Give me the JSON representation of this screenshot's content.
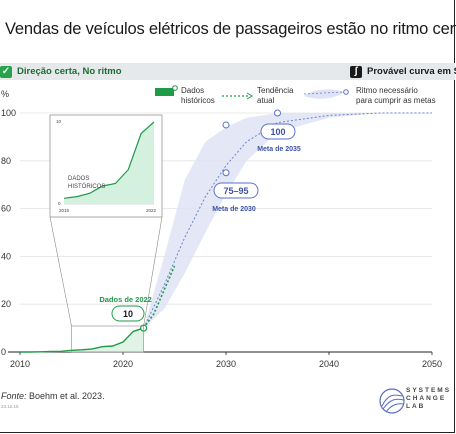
{
  "title": "Vendas de veículos elétricos de passageiros estão no ritmo certo",
  "status": {
    "left_label": "Direção certa, No ritmo",
    "right_label": "Provável curva em S"
  },
  "legend": {
    "historical": [
      "Dados",
      "históricos"
    ],
    "trend": [
      "Tendência",
      "atual"
    ],
    "required": [
      "Ritmo necessário",
      "para cumprir as metas"
    ]
  },
  "annotations": {
    "data2022_title": "Dados de 2022",
    "data2022_value": "10",
    "target2030_value": "75–95",
    "target2030_label": "Meta de 2030",
    "target2035_value": "100",
    "target2035_label": "Meta de 2035"
  },
  "inset": {
    "label": [
      "DADOS",
      "HISTÓRICOS"
    ],
    "y_tick_top": "10",
    "y_tick_bottom": "0",
    "x_tick_left": "2015",
    "x_tick_right": "2022"
  },
  "source": {
    "prefix": "Fonte:",
    "text": " Boehm et al. 2023."
  },
  "image_id": "23.12.15",
  "logo_text": [
    "SYSTEMS",
    "CHANGE",
    "LAB"
  ],
  "colors": {
    "historical": "#1f9a48",
    "band": "#dfe3f5",
    "target": "#5a70c9",
    "dashed": "#6a84d4"
  },
  "chart_data": {
    "type": "line",
    "title": "Vendas de veículos elétricos de passageiros estão no ritmo certo",
    "ylabel": "%",
    "xlim": [
      2010,
      2050
    ],
    "ylim": [
      0,
      100
    ],
    "x_ticks": [
      2010,
      2020,
      2030,
      2040,
      2050
    ],
    "y_ticks": [
      0,
      20,
      40,
      60,
      80,
      100
    ],
    "series": [
      {
        "name": "Dados históricos",
        "x": [
          2010,
          2011,
          2012,
          2013,
          2014,
          2015,
          2016,
          2017,
          2018,
          2019,
          2020,
          2021,
          2022
        ],
        "values": [
          0,
          0,
          0.1,
          0.2,
          0.3,
          0.7,
          0.9,
          1.3,
          2.2,
          2.5,
          4.2,
          8.6,
          10
        ]
      },
      {
        "name": "Tendência atual",
        "x": [
          2022,
          2023,
          2024,
          2025
        ],
        "values": [
          10,
          16,
          26,
          36
        ]
      },
      {
        "name": "Ritmo necessário para cumprir as metas",
        "x": [
          2022,
          2024,
          2026,
          2028,
          2030,
          2032,
          2035,
          2040,
          2045,
          2050
        ],
        "values": [
          10,
          28,
          48,
          65,
          78,
          88,
          96,
          99,
          100,
          100
        ],
        "band_low": [
          10,
          18,
          33,
          50,
          66,
          80,
          92,
          98,
          100,
          100
        ],
        "band_high": [
          10,
          40,
          72,
          88,
          94,
          98,
          100,
          100,
          100,
          100
        ]
      }
    ],
    "targets": [
      {
        "label": "Meta de 2030",
        "x": 2030,
        "low": 75,
        "high": 95
      },
      {
        "label": "Meta de 2035",
        "x": 2035,
        "value": 100
      }
    ]
  }
}
